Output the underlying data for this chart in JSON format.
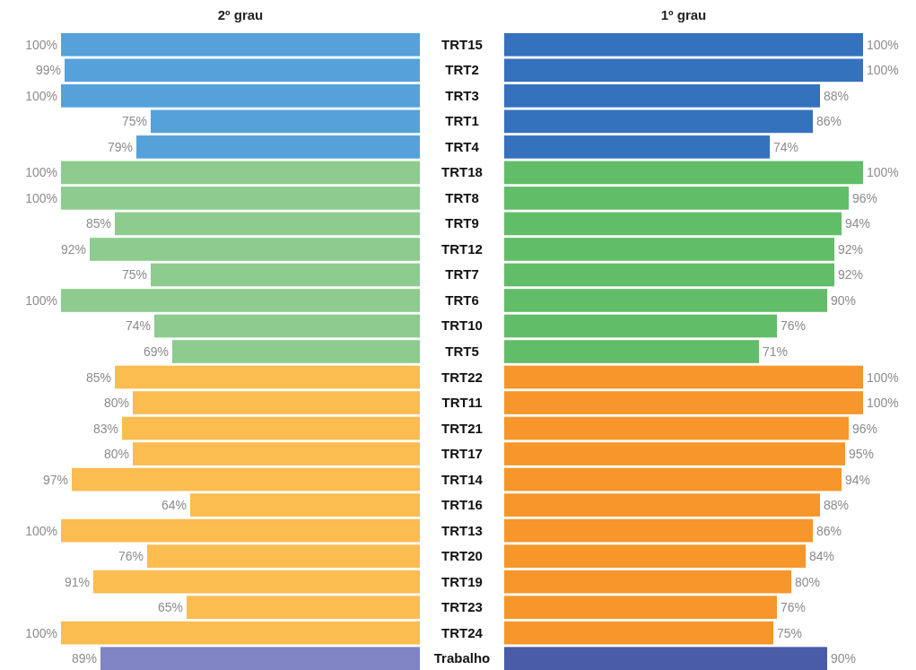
{
  "chart_data": [
    {
      "type": "bar",
      "orientation": "horizontal",
      "title": "2º grau",
      "categories": [
        "TRT15",
        "TRT2",
        "TRT3",
        "TRT1",
        "TRT4",
        "TRT18",
        "TRT8",
        "TRT9",
        "TRT12",
        "TRT7",
        "TRT6",
        "TRT10",
        "TRT5",
        "TRT22",
        "TRT11",
        "TRT21",
        "TRT17",
        "TRT14",
        "TRT16",
        "TRT13",
        "TRT20",
        "TRT19",
        "TRT23",
        "TRT24",
        "Trabalho"
      ],
      "values": [
        100,
        99,
        100,
        75,
        79,
        100,
        100,
        85,
        92,
        75,
        100,
        74,
        69,
        85,
        80,
        83,
        80,
        97,
        64,
        100,
        76,
        91,
        65,
        100,
        89
      ],
      "value_labels": [
        "100%",
        "99%",
        "100%",
        "75%",
        "79%",
        "100%",
        "100%",
        "85%",
        "92%",
        "75%",
        "100%",
        "74%",
        "69%",
        "85%",
        "80%",
        "83%",
        "80%",
        "97%",
        "64%",
        "100%",
        "76%",
        "91%",
        "65%",
        "100%",
        "89%"
      ],
      "colors": [
        "#55a2db",
        "#55a2db",
        "#55a2db",
        "#55a2db",
        "#55a2db",
        "#8dcc8e",
        "#8dcc8e",
        "#8dcc8e",
        "#8dcc8e",
        "#8dcc8e",
        "#8dcc8e",
        "#8dcc8e",
        "#8dcc8e",
        "#fbbc50",
        "#fbbc50",
        "#fbbc50",
        "#fbbc50",
        "#fbbc50",
        "#fbbc50",
        "#fbbc50",
        "#fbbc50",
        "#fbbc50",
        "#fbbc50",
        "#fbbc50",
        "#7f86c3"
      ],
      "xlim": [
        100,
        0
      ],
      "tick_labels": "y"
    },
    {
      "type": "bar",
      "orientation": "horizontal",
      "title": "1º grau",
      "categories": [
        "TRT15",
        "TRT2",
        "TRT3",
        "TRT1",
        "TRT4",
        "TRT18",
        "TRT8",
        "TRT9",
        "TRT12",
        "TRT7",
        "TRT6",
        "TRT10",
        "TRT5",
        "TRT22",
        "TRT11",
        "TRT21",
        "TRT17",
        "TRT14",
        "TRT16",
        "TRT13",
        "TRT20",
        "TRT19",
        "TRT23",
        "TRT24",
        "Trabalho"
      ],
      "values": [
        100,
        100,
        88,
        86,
        74,
        100,
        96,
        94,
        92,
        92,
        90,
        76,
        71,
        100,
        100,
        96,
        95,
        94,
        88,
        86,
        84,
        80,
        76,
        75,
        90
      ],
      "value_labels": [
        "100%",
        "100%",
        "88%",
        "86%",
        "74%",
        "100%",
        "96%",
        "94%",
        "92%",
        "92%",
        "90%",
        "76%",
        "71%",
        "100%",
        "100%",
        "96%",
        "95%",
        "94%",
        "88%",
        "86%",
        "84%",
        "80%",
        "76%",
        "75%",
        "90%"
      ],
      "colors": [
        "#3572bd",
        "#3572bd",
        "#3572bd",
        "#3572bd",
        "#3572bd",
        "#62bd68",
        "#62bd68",
        "#62bd68",
        "#62bd68",
        "#62bd68",
        "#62bd68",
        "#62bd68",
        "#62bd68",
        "#f6962b",
        "#f6962b",
        "#f6962b",
        "#f6962b",
        "#f6962b",
        "#f6962b",
        "#f6962b",
        "#f6962b",
        "#f6962b",
        "#f6962b",
        "#f6962b",
        "#4a5ba8"
      ],
      "xlim": [
        0,
        100
      ],
      "tick_labels": false
    }
  ]
}
